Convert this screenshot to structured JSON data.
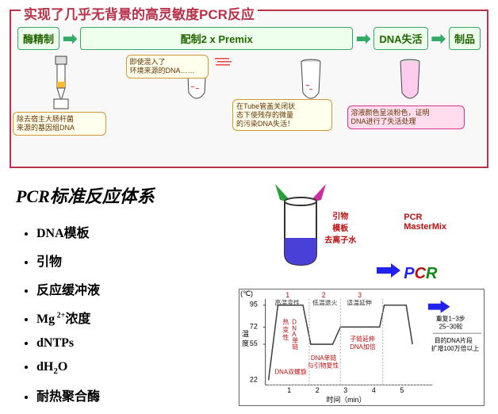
{
  "top": {
    "title": "实现了几乎无背景的高灵敏度PCR反应",
    "stages": [
      "酶精制",
      "配制2 x Premix",
      "DNA失活",
      "制品"
    ],
    "balloon1": "除去宿主大肠杆菌\n来源的基因组DNA",
    "balloon2": "即使混入了\n环境来源的DNA……",
    "balloon3": "在Tube管盖关闭状\n态下使残存的微量\n的污染DNA失活！",
    "balloon4": "溶液颜色呈淡粉色，证明\nDNA进行了失活处理",
    "colors": {
      "border": "#b8324a",
      "stage_bg": "#ebffeb",
      "stage_border": "#3a6",
      "balloon_bg": "#fffce0",
      "balloon_border": "#c93",
      "balloon_pink_bg": "#ffddee"
    }
  },
  "section_title": "PCR标准反应体系",
  "bullets": [
    "DNA模板",
    "引物",
    "反应缓冲液",
    "Mg²⁺浓度",
    "dNTPs",
    "dH₂O",
    "耐热聚合酶"
  ],
  "beaker": {
    "primer_label": "引物\n模板\n去离子水",
    "mastermix": "PCR\nMasterMix",
    "liquid_color": "#4a3fd6",
    "arrow_left_color": "#2b9e3f",
    "arrow_right_color": "#c82fa0"
  },
  "chart": {
    "title_phases": [
      "高温变性",
      "低温退火",
      "适温延伸"
    ],
    "phase_nums": [
      "1",
      "2",
      "3"
    ],
    "y_axis_label": "温度\n(℃)",
    "y_ticks": [
      22,
      55,
      72,
      95
    ],
    "x_axis_label": "时间（min）",
    "x_ticks": [
      1,
      2,
      3,
      4,
      5
    ],
    "phase_annotations": [
      "DNA双螺旋",
      "DNA单链\n与引物复性",
      "子链延伸\nDNA加倍"
    ],
    "right_text1": "重复1~3步\n25~30轮",
    "right_text2": "目的DNA片段\n扩增100万倍以上",
    "line_color": "#444",
    "anno_color": "#b11",
    "phase_color": "#b11"
  }
}
